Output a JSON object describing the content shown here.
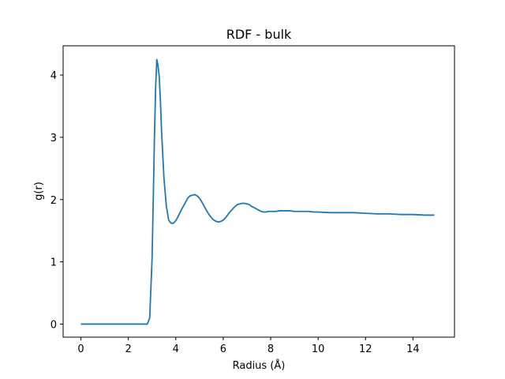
{
  "chart_data": {
    "type": "line",
    "title": "RDF - bulk",
    "xlabel": "Radius (Å)",
    "ylabel": "g(r)",
    "xlim": [
      -0.75,
      15.75
    ],
    "ylim": [
      -0.21,
      4.47
    ],
    "xticks": [
      0,
      2,
      4,
      6,
      8,
      10,
      12,
      14
    ],
    "yticks": [
      0,
      1,
      2,
      3,
      4
    ],
    "grid": false,
    "series": [
      {
        "color": "#1f77b4",
        "x": [
          0.0,
          0.5,
          1.0,
          1.5,
          2.0,
          2.5,
          2.8,
          2.9,
          3.0,
          3.05,
          3.1,
          3.15,
          3.2,
          3.25,
          3.3,
          3.35,
          3.4,
          3.5,
          3.6,
          3.7,
          3.8,
          3.9,
          4.0,
          4.1,
          4.2,
          4.3,
          4.4,
          4.5,
          4.6,
          4.7,
          4.8,
          4.9,
          5.0,
          5.1,
          5.2,
          5.3,
          5.4,
          5.5,
          5.6,
          5.7,
          5.8,
          5.9,
          6.0,
          6.1,
          6.2,
          6.3,
          6.4,
          6.5,
          6.6,
          6.7,
          6.8,
          6.9,
          7.0,
          7.1,
          7.2,
          7.3,
          7.4,
          7.5,
          7.6,
          7.7,
          7.8,
          7.9,
          8.0,
          8.2,
          8.4,
          8.6,
          8.8,
          9.0,
          9.2,
          9.4,
          9.6,
          9.8,
          10.0,
          10.5,
          11.0,
          11.5,
          12.0,
          12.5,
          13.0,
          13.5,
          14.0,
          14.5,
          14.9
        ],
        "y": [
          0.0,
          0.0,
          0.0,
          0.0,
          0.0,
          0.0,
          0.0,
          0.1,
          1.05,
          2.0,
          3.0,
          3.8,
          4.25,
          4.15,
          3.98,
          3.6,
          3.1,
          2.35,
          1.9,
          1.67,
          1.62,
          1.62,
          1.66,
          1.73,
          1.81,
          1.88,
          1.95,
          2.02,
          2.06,
          2.07,
          2.08,
          2.06,
          2.02,
          1.96,
          1.89,
          1.82,
          1.76,
          1.71,
          1.67,
          1.65,
          1.64,
          1.65,
          1.67,
          1.71,
          1.76,
          1.81,
          1.85,
          1.89,
          1.92,
          1.93,
          1.94,
          1.94,
          1.93,
          1.92,
          1.89,
          1.87,
          1.85,
          1.83,
          1.81,
          1.8,
          1.8,
          1.81,
          1.81,
          1.81,
          1.82,
          1.82,
          1.82,
          1.81,
          1.81,
          1.81,
          1.81,
          1.8,
          1.8,
          1.79,
          1.79,
          1.79,
          1.78,
          1.77,
          1.77,
          1.76,
          1.76,
          1.75,
          1.75
        ]
      }
    ]
  }
}
